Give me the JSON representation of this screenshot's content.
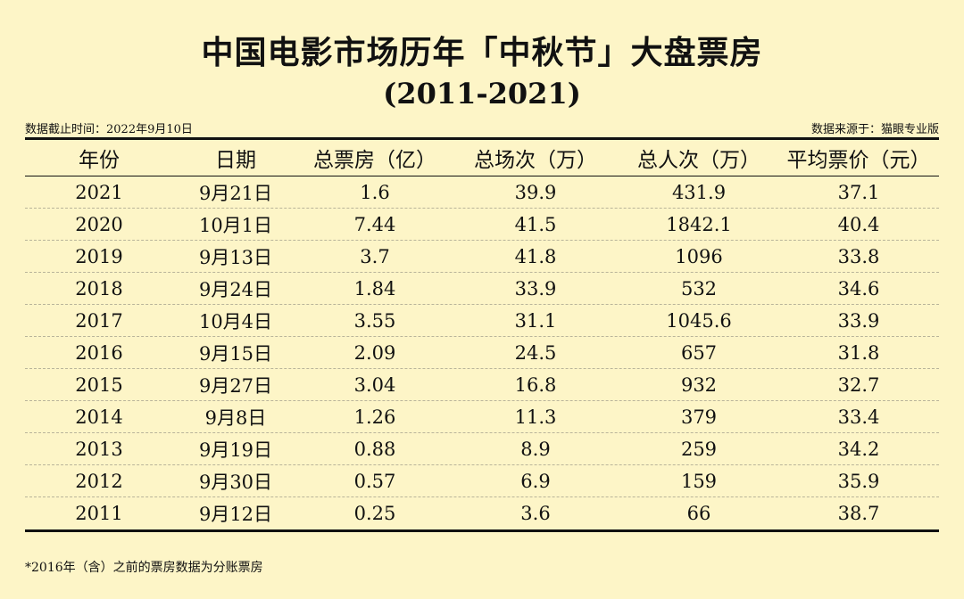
{
  "title": "中国电影市场历年「中秋节」大盘票房",
  "subtitle": "(2011-2021)",
  "meta": {
    "cutoff": "数据截止时间：2022年9月10日",
    "source": "数据来源于：猫眼专业版"
  },
  "footnote": "*2016年（含）之前的票房数据为分账票房",
  "colors": {
    "background": "#fdf5c7",
    "text": "#111111",
    "dashed_rule": "#b9b49a"
  },
  "chart_data": {
    "type": "table",
    "title": "中国电影市场历年「中秋节」大盘票房",
    "subtitle": "(2011-2021)",
    "columns": [
      "年份",
      "日期",
      "总票房（亿）",
      "总场次（万）",
      "总人次（万）",
      "平均票价（元）"
    ],
    "rows": [
      [
        "2021",
        "9月21日",
        "1.6",
        "39.9",
        "431.9",
        "37.1"
      ],
      [
        "2020",
        "10月1日",
        "7.44",
        "41.5",
        "1842.1",
        "40.4"
      ],
      [
        "2019",
        "9月13日",
        "3.7",
        "41.8",
        "1096",
        "33.8"
      ],
      [
        "2018",
        "9月24日",
        "1.84",
        "33.9",
        "532",
        "34.6"
      ],
      [
        "2017",
        "10月4日",
        "3.55",
        "31.1",
        "1045.6",
        "33.9"
      ],
      [
        "2016",
        "9月15日",
        "2.09",
        "24.5",
        "657",
        "31.8"
      ],
      [
        "2015",
        "9月27日",
        "3.04",
        "16.8",
        "932",
        "32.7"
      ],
      [
        "2014",
        "9月8日",
        "1.26",
        "11.3",
        "379",
        "33.4"
      ],
      [
        "2013",
        "9月19日",
        "0.88",
        "8.9",
        "259",
        "34.2"
      ],
      [
        "2012",
        "9月30日",
        "0.57",
        "6.9",
        "159",
        "35.9"
      ],
      [
        "2011",
        "9月12日",
        "0.25",
        "3.6",
        "66",
        "38.7"
      ]
    ]
  }
}
